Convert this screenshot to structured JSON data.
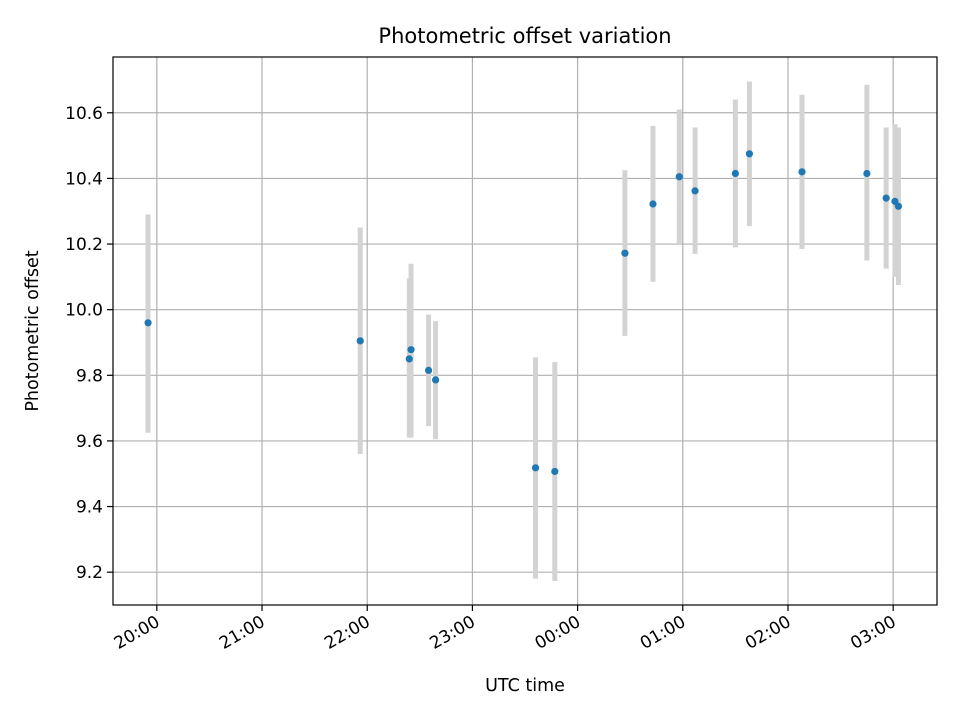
{
  "chart_data": {
    "type": "scatter",
    "title": "Photometric offset variation",
    "xlabel": "UTC time",
    "ylabel": "Photometric offset",
    "x_axis": {
      "kind": "time",
      "range": [
        "19:35",
        "03:25"
      ],
      "ticks": [
        "20:00",
        "21:00",
        "22:00",
        "23:00",
        "00:00",
        "01:00",
        "02:00",
        "03:00"
      ]
    },
    "ylim": [
      9.1,
      10.77
    ],
    "yticks": [
      "9.2",
      "9.4",
      "9.6",
      "9.8",
      "10.0",
      "10.2",
      "10.4",
      "10.6"
    ],
    "grid": true,
    "colors": {
      "point": "#1f77b4",
      "errorbar": "#d3d3d3",
      "grid": "#b0b0b0"
    },
    "points": [
      {
        "time": "19:55",
        "y": 9.96,
        "ylo": 9.625,
        "yhi": 10.29
      },
      {
        "time": "21:56",
        "y": 9.905,
        "ylo": 9.56,
        "yhi": 10.25
      },
      {
        "time": "22:24",
        "y": 9.85,
        "ylo": 9.61,
        "yhi": 10.095
      },
      {
        "time": "22:25",
        "y": 9.878,
        "ylo": 9.61,
        "yhi": 10.14
      },
      {
        "time": "22:35",
        "y": 9.815,
        "ylo": 9.645,
        "yhi": 9.985
      },
      {
        "time": "22:39",
        "y": 9.786,
        "ylo": 9.605,
        "yhi": 9.965
      },
      {
        "time": "23:36",
        "y": 9.518,
        "ylo": 9.18,
        "yhi": 9.855
      },
      {
        "time": "23:47",
        "y": 9.507,
        "ylo": 9.173,
        "yhi": 9.84
      },
      {
        "time": "00:27",
        "y": 10.172,
        "ylo": 9.92,
        "yhi": 10.425
      },
      {
        "time": "00:43",
        "y": 10.322,
        "ylo": 10.085,
        "yhi": 10.56
      },
      {
        "time": "00:58",
        "y": 10.405,
        "ylo": 10.2,
        "yhi": 10.61
      },
      {
        "time": "01:07",
        "y": 10.362,
        "ylo": 10.17,
        "yhi": 10.555
      },
      {
        "time": "01:30",
        "y": 10.415,
        "ylo": 10.19,
        "yhi": 10.64
      },
      {
        "time": "01:38",
        "y": 10.475,
        "ylo": 10.255,
        "yhi": 10.695
      },
      {
        "time": "02:08",
        "y": 10.42,
        "ylo": 10.185,
        "yhi": 10.655
      },
      {
        "time": "02:45",
        "y": 10.415,
        "ylo": 10.15,
        "yhi": 10.685
      },
      {
        "time": "02:56",
        "y": 10.34,
        "ylo": 10.125,
        "yhi": 10.555
      },
      {
        "time": "03:01",
        "y": 10.33,
        "ylo": 10.1,
        "yhi": 10.565
      },
      {
        "time": "03:03",
        "y": 10.315,
        "ylo": 10.075,
        "yhi": 10.555
      }
    ]
  }
}
